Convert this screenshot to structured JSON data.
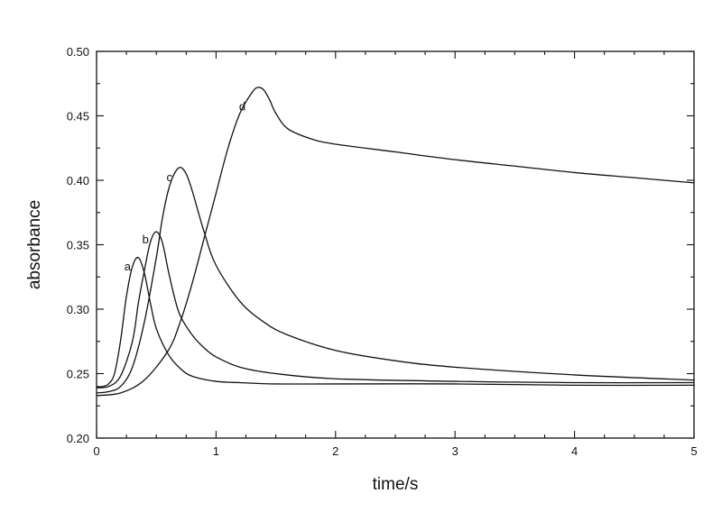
{
  "chart_data": {
    "type": "line",
    "xlabel": "time/s",
    "ylabel": "absorbance",
    "xlim": [
      0,
      5
    ],
    "ylim": [
      0.2,
      0.5
    ],
    "x_ticks": [
      "0",
      "1",
      "2",
      "3",
      "4",
      "5"
    ],
    "y_ticks": [
      "0.20",
      "0.25",
      "0.30",
      "0.35",
      "0.40",
      "0.45",
      "0.50"
    ],
    "grid": false,
    "legend": "none",
    "series": [
      {
        "name": "a",
        "label_at": [
          0.26,
          0.333
        ],
        "x": [
          0,
          0.05,
          0.1,
          0.15,
          0.2,
          0.25,
          0.3,
          0.35,
          0.4,
          0.45,
          0.5,
          0.6,
          0.7,
          0.8,
          1.0,
          1.2,
          1.5,
          2.0,
          3.0,
          4.0,
          5.0
        ],
        "y": [
          0.24,
          0.24,
          0.242,
          0.25,
          0.275,
          0.31,
          0.333,
          0.34,
          0.328,
          0.305,
          0.285,
          0.265,
          0.254,
          0.248,
          0.244,
          0.243,
          0.242,
          0.242,
          0.242,
          0.241,
          0.241
        ]
      },
      {
        "name": "b",
        "label_at": [
          0.41,
          0.354
        ],
        "x": [
          0,
          0.1,
          0.2,
          0.3,
          0.35,
          0.4,
          0.45,
          0.5,
          0.55,
          0.6,
          0.65,
          0.7,
          0.8,
          0.9,
          1.0,
          1.2,
          1.5,
          2.0,
          3.0,
          4.0,
          5.0
        ],
        "y": [
          0.239,
          0.24,
          0.248,
          0.275,
          0.305,
          0.33,
          0.352,
          0.36,
          0.352,
          0.33,
          0.31,
          0.295,
          0.28,
          0.27,
          0.263,
          0.255,
          0.25,
          0.246,
          0.244,
          0.243,
          0.243
        ]
      },
      {
        "name": "c",
        "label_at": [
          0.61,
          0.402
        ],
        "x": [
          0,
          0.1,
          0.2,
          0.3,
          0.4,
          0.5,
          0.55,
          0.6,
          0.65,
          0.7,
          0.75,
          0.8,
          0.9,
          1.0,
          1.2,
          1.4,
          1.6,
          2.0,
          2.5,
          3.0,
          4.0,
          5.0
        ],
        "y": [
          0.235,
          0.236,
          0.24,
          0.255,
          0.29,
          0.34,
          0.37,
          0.392,
          0.405,
          0.41,
          0.405,
          0.392,
          0.36,
          0.334,
          0.306,
          0.29,
          0.28,
          0.268,
          0.26,
          0.255,
          0.249,
          0.245
        ]
      },
      {
        "name": "d",
        "label_at": [
          1.22,
          0.457
        ],
        "x": [
          0,
          0.2,
          0.4,
          0.6,
          0.7,
          0.8,
          0.9,
          1.0,
          1.1,
          1.2,
          1.3,
          1.35,
          1.4,
          1.45,
          1.5,
          1.6,
          1.8,
          2.0,
          2.5,
          3.0,
          3.5,
          4.0,
          4.5,
          5.0
        ],
        "y": [
          0.233,
          0.235,
          0.245,
          0.268,
          0.29,
          0.32,
          0.355,
          0.39,
          0.425,
          0.452,
          0.468,
          0.472,
          0.47,
          0.462,
          0.452,
          0.44,
          0.432,
          0.428,
          0.422,
          0.416,
          0.411,
          0.406,
          0.402,
          0.398
        ]
      }
    ]
  }
}
